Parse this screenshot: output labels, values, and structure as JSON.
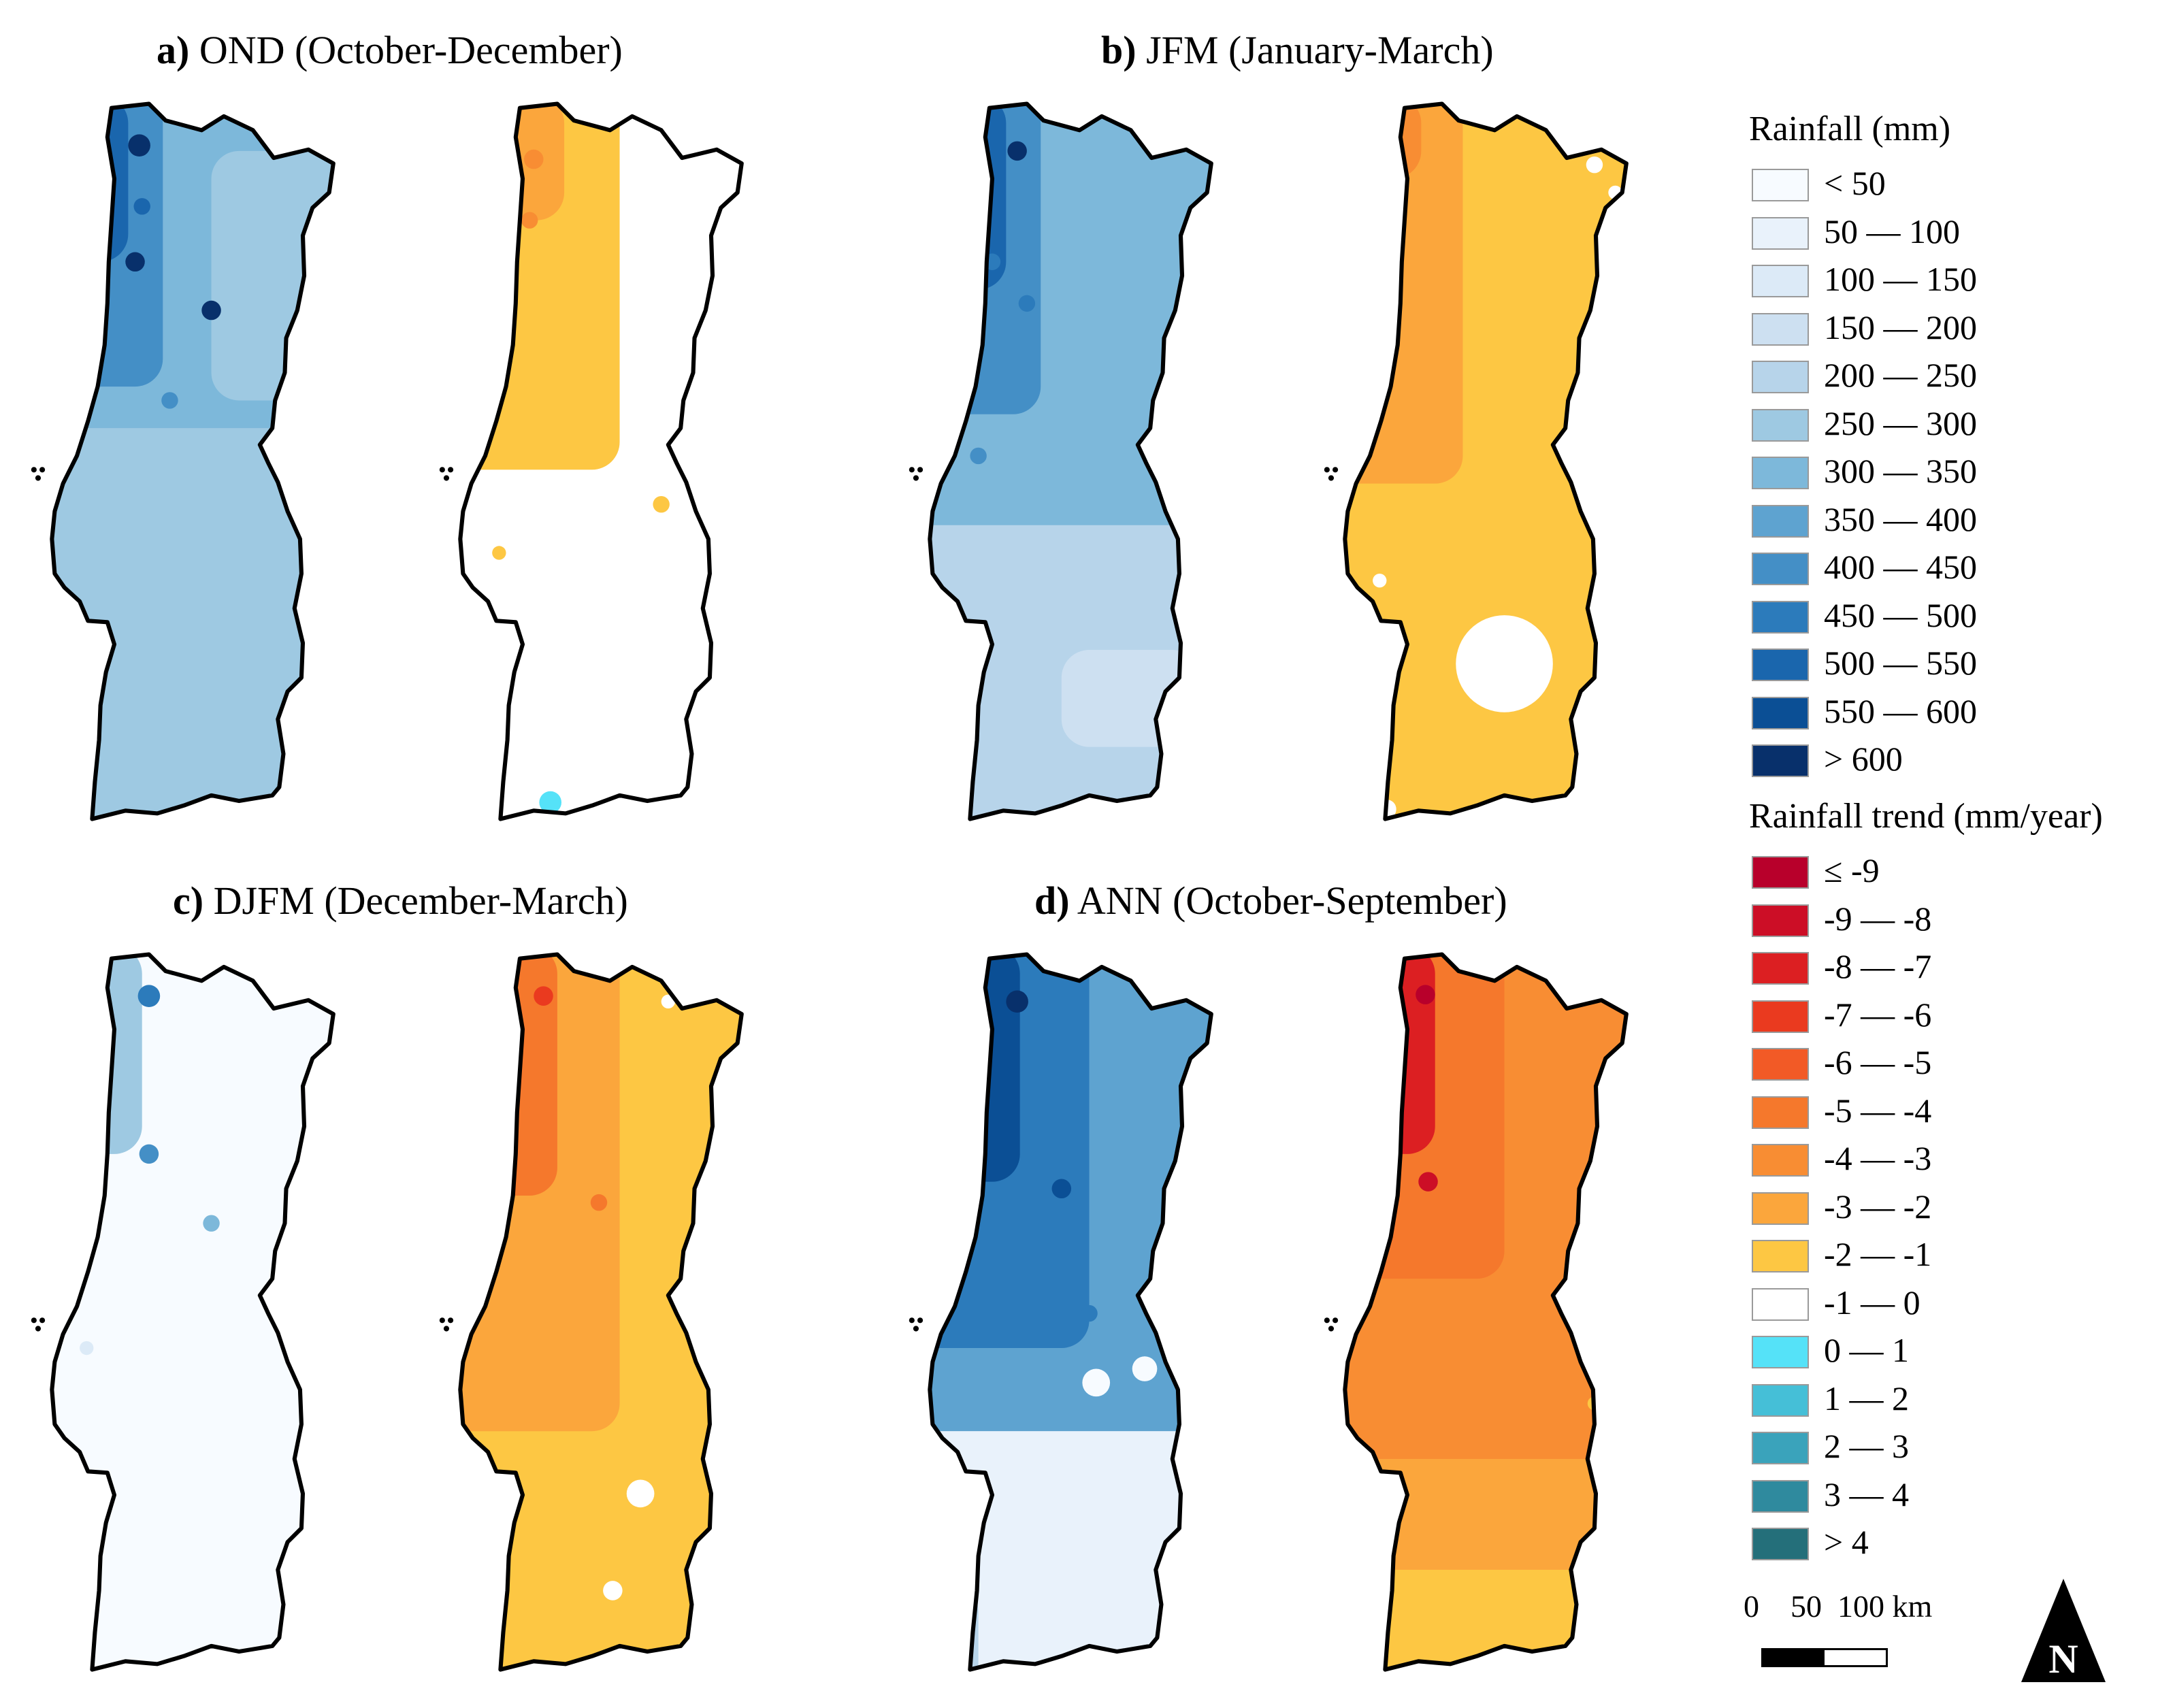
{
  "panels": [
    {
      "id": "a",
      "letter": "a)",
      "title": "OND (October-December)"
    },
    {
      "id": "b",
      "letter": "b)",
      "title": "JFM (January-March)"
    },
    {
      "id": "c",
      "letter": "c)",
      "title": "DJFM (December-March)"
    },
    {
      "id": "d",
      "letter": "d)",
      "title": "ANN (October-September)"
    }
  ],
  "legend": {
    "rainfall_title": "Rainfall (mm)",
    "rainfall_classes": [
      {
        "label": "< 50",
        "color": "#f7fbff"
      },
      {
        "label": "50 — 100",
        "color": "#e9f2fb"
      },
      {
        "label": "100 — 150",
        "color": "#dceaf7"
      },
      {
        "label": "150 — 200",
        "color": "#cde0f1"
      },
      {
        "label": "200 — 250",
        "color": "#b7d4ea"
      },
      {
        "label": "250 — 300",
        "color": "#9ec9e2"
      },
      {
        "label": "300 — 350",
        "color": "#7db8da"
      },
      {
        "label": "350 — 400",
        "color": "#5ea3d0"
      },
      {
        "label": "400 — 450",
        "color": "#448fc6"
      },
      {
        "label": "450 — 500",
        "color": "#2c7bbb"
      },
      {
        "label": "500 — 550",
        "color": "#1a66ad"
      },
      {
        "label": "550 — 600",
        "color": "#0b4f95"
      },
      {
        "label": "> 600",
        "color": "#08306b"
      }
    ],
    "trend_title": "Rainfall trend (mm/year)",
    "trend_classes": [
      {
        "label": "≤ -9",
        "color": "#b8002b"
      },
      {
        "label": "-9 — -8",
        "color": "#cc0e26"
      },
      {
        "label": "-8 — -7",
        "color": "#dc1f22"
      },
      {
        "label": "-7 — -6",
        "color": "#ea3a1f"
      },
      {
        "label": "-6 — -5",
        "color": "#f25a26"
      },
      {
        "label": "-5 — -4",
        "color": "#f5782c"
      },
      {
        "label": "-4 — -3",
        "color": "#f88d33"
      },
      {
        "label": "-3 — -2",
        "color": "#fba63c"
      },
      {
        "label": "-2 — -1",
        "color": "#fdc743"
      },
      {
        "label": "-1 — 0",
        "color": "#ffffff"
      },
      {
        "label": "0 — 1",
        "color": "#55e2f8"
      },
      {
        "label": "1 — 2",
        "color": "#45bfd7"
      },
      {
        "label": "2 — 3",
        "color": "#3aa3bb"
      },
      {
        "label": "3 — 4",
        "color": "#2f8a9e"
      },
      {
        "label": "> 4",
        "color": "#246f7a"
      }
    ]
  },
  "scale": {
    "ticks": "0    50  100 km"
  },
  "north_arrow": {
    "label": "N"
  },
  "colors": {
    "outline": "#000000"
  }
}
